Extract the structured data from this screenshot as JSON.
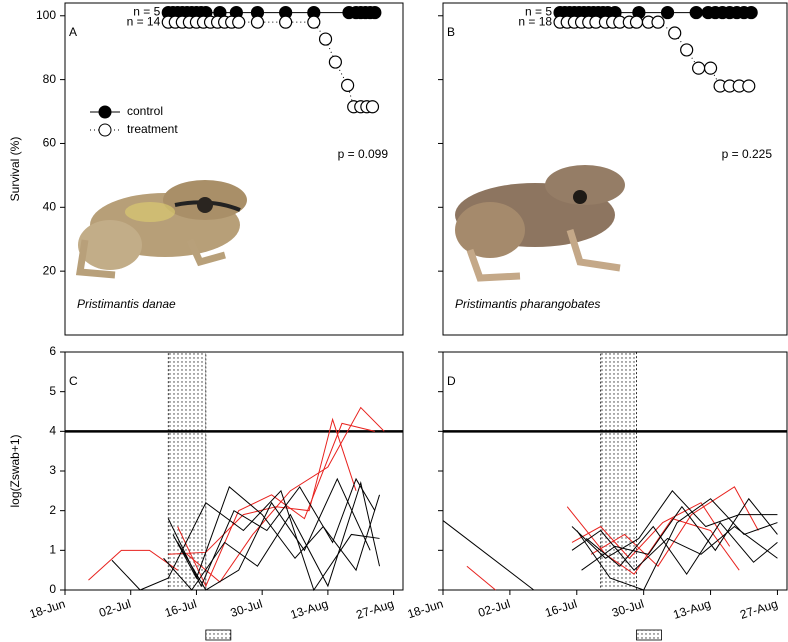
{
  "chart_data": [
    {
      "type": "survival",
      "panel_label": "A",
      "species": "Pristimantis danae",
      "p_value": "p = 0.099",
      "y_label": "Survival (%)",
      "n_labels": [
        "n = 5",
        "n = 14"
      ],
      "legend": true,
      "ytick_labels": true,
      "xlim": [
        0,
        72
      ],
      "ylim": [
        0,
        104
      ],
      "yticks": [
        20,
        40,
        60,
        80,
        100
      ],
      "series": [
        {
          "name": "control",
          "color": "#000000",
          "marker": "filled",
          "dash": false,
          "x": [
            22,
            23,
            24,
            25,
            26,
            27,
            28,
            29,
            30,
            33,
            36.5,
            41,
            47,
            53,
            60.5,
            62,
            63,
            64,
            65,
            66
          ],
          "values": [
            101,
            101,
            101,
            101,
            101,
            101,
            101,
            101,
            101,
            101,
            101,
            101,
            101,
            101,
            101,
            101,
            101,
            101,
            101,
            101
          ]
        },
        {
          "name": "treatment",
          "color": "#000000",
          "marker": "open",
          "dash": true,
          "x": [
            22,
            23.5,
            25,
            26.5,
            28,
            29.5,
            31,
            32.5,
            34,
            35.5,
            37,
            41,
            47,
            53,
            55.5,
            57.6,
            60.2,
            61.5,
            63,
            64.3,
            65.5
          ],
          "values": [
            98,
            98,
            98,
            98,
            98,
            98,
            98,
            98,
            98,
            98,
            98,
            98,
            98,
            98,
            92.7,
            85.5,
            78.2,
            71.5,
            71.5,
            71.5,
            71.5
          ]
        }
      ]
    },
    {
      "type": "survival",
      "panel_label": "B",
      "species": "Pristimantis pharangobates",
      "p_value": "p = 0.225",
      "n_labels": [
        "n = 5",
        "n = 18"
      ],
      "legend": false,
      "ytick_labels": false,
      "xlim": [
        0,
        72
      ],
      "ylim": [
        0,
        104
      ],
      "yticks": [
        20,
        40,
        60,
        80,
        100
      ],
      "series": [
        {
          "color": "#000000",
          "marker": "filled",
          "dash": false,
          "x": [
            24.5,
            25.5,
            26.5,
            27.5,
            28.5,
            29.5,
            30.5,
            31.5,
            32.5,
            33.5,
            34.5,
            36,
            41,
            47,
            53,
            55.5,
            57,
            58.5,
            60,
            61.5,
            63,
            64.5
          ],
          "values": [
            101,
            101,
            101,
            101,
            101,
            101,
            101,
            101,
            101,
            101,
            101,
            101,
            101,
            101,
            101,
            101,
            101,
            101,
            101,
            101,
            101,
            101
          ]
        },
        {
          "color": "#000000",
          "marker": "open",
          "dash": true,
          "x": [
            24.5,
            26,
            27.5,
            29,
            30.5,
            32,
            34,
            35.5,
            37,
            39,
            40.5,
            43,
            45,
            48.5,
            51,
            53.5,
            56,
            58,
            60,
            62,
            64
          ],
          "values": [
            98,
            98,
            98,
            98,
            98,
            98,
            98,
            98,
            98,
            98,
            98,
            98,
            98,
            94.6,
            89.3,
            83.6,
            83.6,
            78,
            78,
            78,
            78
          ]
        }
      ]
    },
    {
      "type": "line",
      "panel_label": "C",
      "y_label": "log(Zswab+1)",
      "ytick_labels": true,
      "xlim": [
        0,
        72
      ],
      "ylim": [
        0,
        6
      ],
      "yticks": [
        0,
        1,
        2,
        3,
        4,
        5,
        6
      ],
      "threshold": 4,
      "shade_x": [
        22,
        30
      ],
      "xticks": [
        {
          "value": 0,
          "label": "18-Jun"
        },
        {
          "value": 14,
          "label": "02-Jul"
        },
        {
          "value": 28,
          "label": "16-Jul"
        },
        {
          "value": 42,
          "label": "30-Jul"
        },
        {
          "value": 56,
          "label": "13-Aug"
        },
        {
          "value": 70,
          "label": "27-Aug"
        }
      ],
      "series": [
        {
          "color": "#e8221e",
          "x": [
            5,
            12,
            18,
            24
          ],
          "values": [
            0.25,
            1.0,
            1.0,
            0.5
          ]
        },
        {
          "color": "#e8221e",
          "x": [
            22,
            30,
            38,
            45,
            52,
            57,
            62
          ],
          "values": [
            0.9,
            0.95,
            1.9,
            2.1,
            2.0,
            4.3,
            2.5
          ]
        },
        {
          "color": "#e8221e",
          "x": [
            24,
            30,
            37,
            44,
            51,
            59,
            66
          ],
          "values": [
            1.6,
            0.1,
            2.0,
            2.4,
            1.8,
            4.2,
            4.0
          ]
        },
        {
          "color": "#e8221e",
          "x": [
            26,
            33,
            40,
            48,
            56,
            63,
            68
          ],
          "values": [
            0.9,
            0.2,
            1.4,
            2.5,
            3.1,
            4.6,
            4.0
          ]
        },
        {
          "color": "#000000",
          "x": [
            22,
            29,
            36,
            43,
            50,
            57,
            62,
            66
          ],
          "values": [
            1.8,
            0.1,
            2.0,
            1.5,
            2.6,
            1.2,
            2.8,
            2.0
          ]
        },
        {
          "color": "#000000",
          "x": [
            23,
            28,
            35,
            42,
            49,
            55,
            62,
            67
          ],
          "values": [
            1.4,
            0.3,
            2.6,
            1.9,
            0.8,
            1.6,
            0.5,
            2.4
          ]
        },
        {
          "color": "#000000",
          "x": [
            21,
            27,
            34,
            41,
            48,
            56,
            63,
            67
          ],
          "values": [
            0.8,
            0.0,
            1.2,
            0.6,
            1.9,
            0.1,
            2.7,
            0.6
          ]
        },
        {
          "color": "#000000",
          "x": [
            24,
            30,
            37,
            44,
            51,
            58,
            65
          ],
          "values": [
            1.2,
            0.0,
            0.5,
            2.2,
            1.0,
            2.8,
            1.0
          ]
        },
        {
          "color": "#000000",
          "x": [
            10,
            16,
            22,
            30,
            38,
            46,
            53,
            61,
            67
          ],
          "values": [
            0.75,
            0.0,
            0.3,
            2.2,
            1.5,
            2.5,
            0.0,
            1.4,
            1.3
          ]
        }
      ]
    },
    {
      "type": "line",
      "panel_label": "D",
      "ytick_labels": false,
      "xlim": [
        0,
        72
      ],
      "ylim": [
        0,
        6
      ],
      "yticks": [
        0,
        1,
        2,
        3,
        4,
        5,
        6
      ],
      "threshold": 4,
      "shade_x": [
        33,
        40.5
      ],
      "xticks": [
        {
          "value": 0,
          "label": "18-Jun"
        },
        {
          "value": 14,
          "label": "02-Jul"
        },
        {
          "value": 28,
          "label": "16-Jul"
        },
        {
          "value": 42,
          "label": "30-Jul"
        },
        {
          "value": 56,
          "label": "13-Aug"
        },
        {
          "value": 70,
          "label": "27-Aug"
        }
      ],
      "series": [
        {
          "color": "#e8221e",
          "x": [
            5,
            11
          ],
          "values": [
            0.6,
            0.0
          ]
        },
        {
          "color": "#e8221e",
          "x": [
            26,
            34,
            40,
            48,
            56,
            62
          ],
          "values": [
            2.1,
            0.9,
            0.4,
            1.8,
            1.5,
            0.5
          ]
        },
        {
          "color": "#e8221e",
          "x": [
            27,
            33,
            39,
            46,
            54,
            60
          ],
          "values": [
            1.2,
            1.6,
            0.8,
            1.7,
            2.2,
            1.1
          ]
        },
        {
          "color": "#e8221e",
          "x": [
            31,
            38,
            45,
            52,
            61,
            66
          ],
          "values": [
            0.9,
            1.4,
            0.6,
            1.9,
            2.6,
            1.5
          ]
        },
        {
          "color": "#000000",
          "x": [
            0,
            19
          ],
          "values": [
            1.75,
            0.0
          ]
        },
        {
          "color": "#000000",
          "x": [
            27,
            34,
            41,
            48,
            55,
            62,
            70
          ],
          "values": [
            1.6,
            0.8,
            1.3,
            2.5,
            1.6,
            1.9,
            1.9
          ]
        },
        {
          "color": "#000000",
          "x": [
            28,
            35,
            42,
            49,
            56,
            63,
            70
          ],
          "values": [
            1.5,
            0.3,
            0.0,
            1.7,
            2.3,
            1.4,
            1.7
          ]
        },
        {
          "color": "#000000",
          "x": [
            27,
            33,
            40,
            47,
            54,
            61,
            70
          ],
          "values": [
            1.0,
            1.5,
            0.5,
            1.3,
            0.9,
            1.6,
            0.8
          ]
        },
        {
          "color": "#000000",
          "x": [
            29,
            36,
            43,
            50,
            57,
            64,
            70
          ],
          "values": [
            0.5,
            1.1,
            0.9,
            2.1,
            1.0,
            2.3,
            1.4
          ]
        },
        {
          "color": "#000000",
          "x": [
            30,
            37,
            44,
            51,
            58,
            65,
            70
          ],
          "values": [
            1.3,
            0.6,
            1.6,
            0.4,
            1.7,
            0.7,
            1.2
          ]
        }
      ]
    }
  ]
}
